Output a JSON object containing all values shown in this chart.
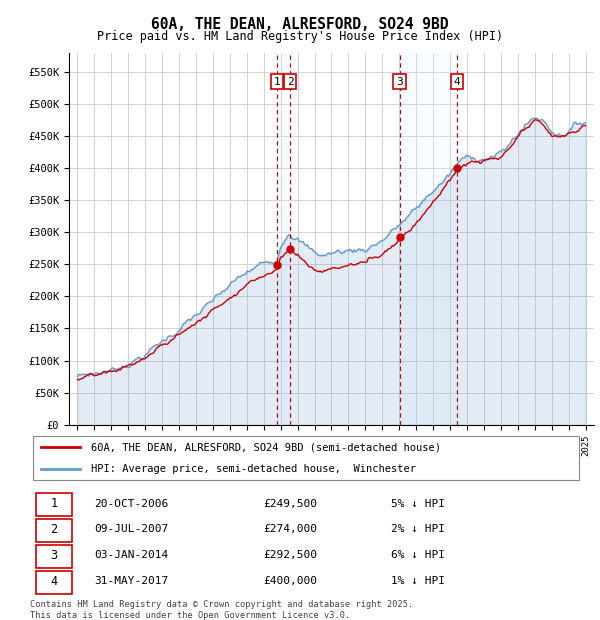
{
  "title": "60A, THE DEAN, ALRESFORD, SO24 9BD",
  "subtitle": "Price paid vs. HM Land Registry's House Price Index (HPI)",
  "legend_line1": "60A, THE DEAN, ALRESFORD, SO24 9BD (semi-detached house)",
  "legend_line2": "HPI: Average price, semi-detached house,  Winchester",
  "footer": "Contains HM Land Registry data © Crown copyright and database right 2025.\nThis data is licensed under the Open Government Licence v3.0.",
  "ylabel_ticks": [
    "£0",
    "£50K",
    "£100K",
    "£150K",
    "£200K",
    "£250K",
    "£300K",
    "£350K",
    "£400K",
    "£450K",
    "£500K",
    "£550K"
  ],
  "ytick_vals": [
    0,
    50000,
    100000,
    150000,
    200000,
    250000,
    300000,
    350000,
    400000,
    450000,
    500000,
    550000
  ],
  "ylim": [
    0,
    580000
  ],
  "xlim": [
    1994.5,
    2025.5
  ],
  "sale_events": [
    {
      "num": 1,
      "date_x": 2006.8,
      "price": 249500,
      "label": "20-OCT-2006",
      "price_str": "£249,500",
      "pct": "5% ↓ HPI"
    },
    {
      "num": 2,
      "date_x": 2007.55,
      "price": 274000,
      "label": "09-JUL-2007",
      "price_str": "£274,000",
      "pct": "2% ↓ HPI"
    },
    {
      "num": 3,
      "date_x": 2014.02,
      "price": 292500,
      "label": "03-JAN-2014",
      "price_str": "£292,500",
      "pct": "6% ↓ HPI"
    },
    {
      "num": 4,
      "date_x": 2017.42,
      "price": 400000,
      "label": "31-MAY-2017",
      "price_str": "£400,000",
      "pct": "1% ↓ HPI"
    }
  ],
  "hpi_color": "#6699cc",
  "price_color": "#cc0000",
  "vline_color": "#cc0000",
  "shade_color": "#ddeeff",
  "box_edge_color": "#cc0000",
  "grid_color": "#cccccc",
  "background_color": "#ffffff"
}
